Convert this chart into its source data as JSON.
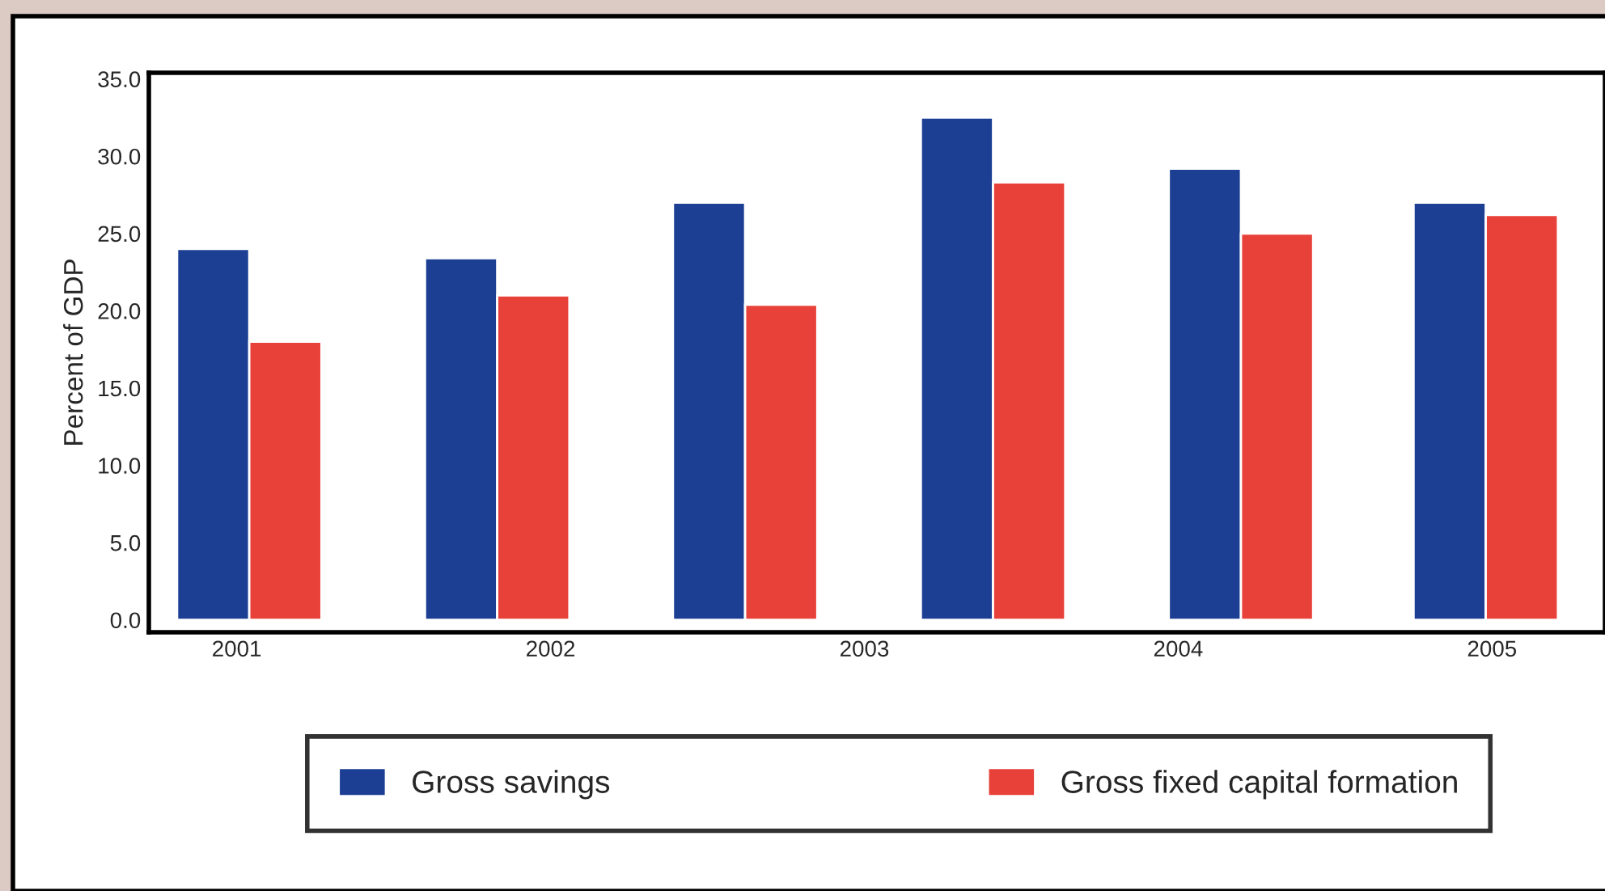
{
  "chart_data": {
    "type": "bar",
    "ylabel": "Percent of GDP",
    "x": [
      2001.04,
      2001.83,
      2002.62,
      2003.41,
      2004.2,
      2004.98
    ],
    "xlim": [
      2000.72,
      2005.36
    ],
    "xticks": [
      2001,
      2002,
      2003,
      2004,
      2005
    ],
    "ylim": [
      -0.8,
      35.4
    ],
    "yticks": [
      {
        "value": 0,
        "label": "0.0"
      },
      {
        "value": 5,
        "label": "5.0"
      },
      {
        "value": 10,
        "label": "10.0"
      },
      {
        "value": 15,
        "label": "15.0"
      },
      {
        "value": 20,
        "label": "20.0"
      },
      {
        "value": 25,
        "label": "25.0"
      },
      {
        "value": 30,
        "label": "30.0"
      },
      {
        "value": 35,
        "label": "35.0"
      }
    ],
    "series": [
      {
        "name": "Gross savings",
        "color": "#1c3f94",
        "values": [
          24.0,
          23.4,
          27.0,
          32.5,
          29.2,
          27.0
        ]
      },
      {
        "name": "Gross fixed capital formation",
        "color": "#e8413a",
        "values": [
          18.0,
          21.0,
          20.4,
          28.3,
          25.0,
          26.2
        ]
      }
    ],
    "legend": "bottom",
    "grid": false
  }
}
